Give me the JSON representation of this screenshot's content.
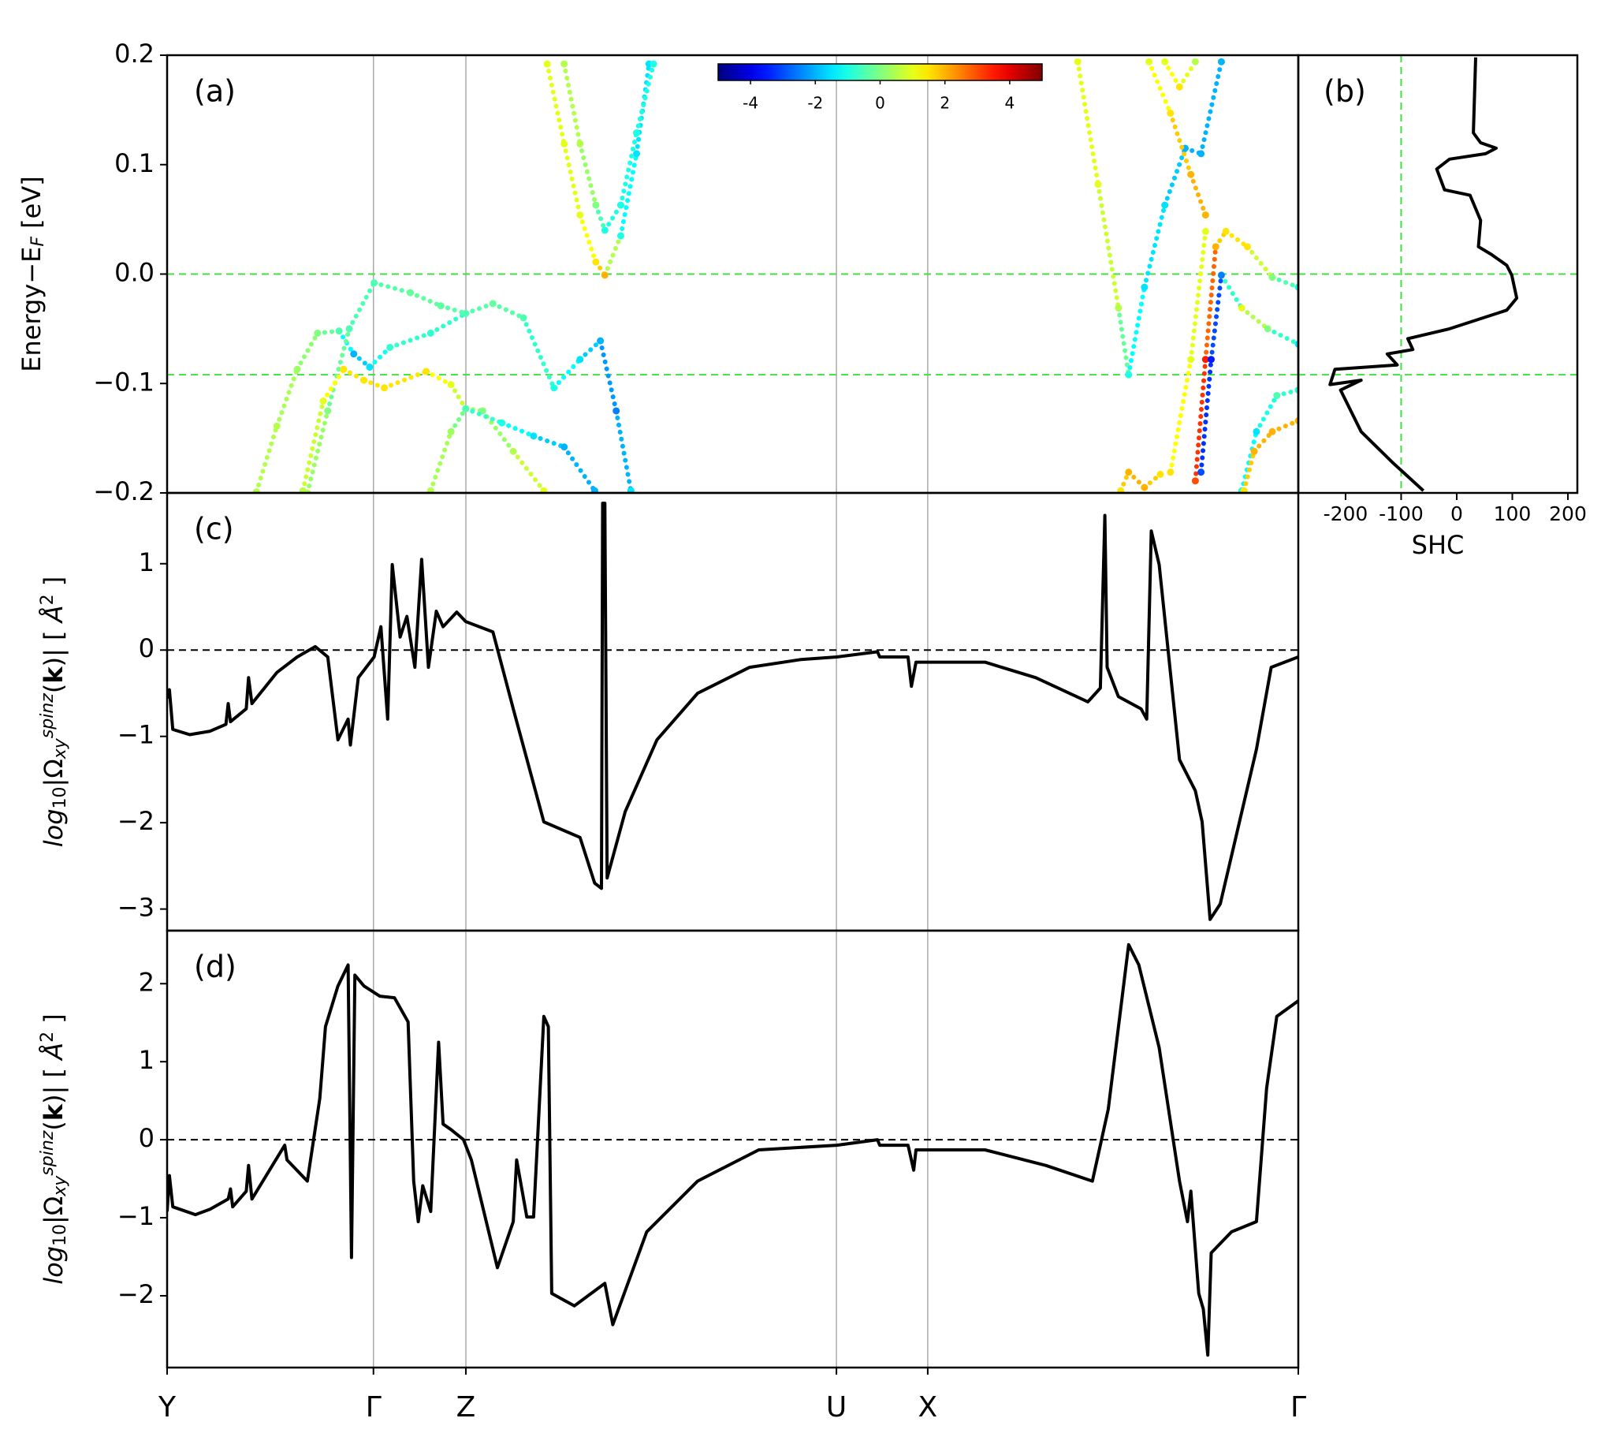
{
  "chart_data": [
    {
      "type": "scatter",
      "label": "(a)",
      "ylabel": [
        {
          "text": "Energy−E"
        },
        {
          "text": "F",
          "style": "sub-italic"
        },
        {
          "text": " [eV]"
        }
      ],
      "xlim": [
        0,
        1
      ],
      "ylim": [
        -0.2,
        0.2
      ],
      "yticks": [
        {
          "value": -0.2,
          "label": "−0.2"
        },
        {
          "value": -0.1,
          "label": "−0.1"
        },
        {
          "value": 0,
          "label": "0.0"
        },
        0.1,
        0.2
      ],
      "hlines": [
        0,
        -0.092
      ],
      "hline_color": "#44dd44",
      "colorbar": {
        "clim": [
          -5,
          5
        ],
        "ticks": [
          -4,
          -2,
          0,
          2,
          4
        ]
      },
      "series": [
        {
          "x": [
            0.079,
            0.097,
            0.115,
            0.133,
            0.152,
            0.165,
            0.179,
            0.197,
            0.233,
            0.264
          ],
          "values": [
            -0.199,
            -0.139,
            -0.087,
            -0.054,
            -0.052,
            -0.073,
            -0.085,
            -0.067,
            -0.054,
            -0.036
          ],
          "c": [
            0.5,
            0.5,
            0.3,
            0,
            -0.5,
            -2,
            -1.5,
            -0.8,
            -0.8,
            -0.8
          ]
        },
        {
          "x": [
            0.124,
            0.142,
            0.161,
            0.183,
            0.215,
            0.242,
            0.264,
            0.288,
            0.315,
            0.342,
            0.365,
            0.383,
            0.397,
            0.41
          ],
          "values": [
            -0.2,
            -0.125,
            -0.05,
            -0.008,
            -0.017,
            -0.029,
            -0.036,
            -0.027,
            -0.04,
            -0.104,
            -0.078,
            -0.061,
            -0.125,
            -0.198
          ],
          "c": [
            0.5,
            0,
            -0.5,
            -0.5,
            -0.3,
            -0.3,
            -0.5,
            -0.3,
            -0.5,
            -1,
            -1.5,
            -2,
            -2.5,
            -1.5
          ]
        },
        {
          "x": [
            0.12,
            0.138,
            0.156,
            0.174,
            0.192,
            0.229,
            0.251,
            0.264,
            0.279,
            0.306,
            0.333
          ],
          "values": [
            -0.198,
            -0.116,
            -0.087,
            -0.097,
            -0.104,
            -0.089,
            -0.101,
            -0.123,
            -0.125,
            -0.162,
            -0.198
          ],
          "c": [
            0.5,
            1,
            1.5,
            1.5,
            1.5,
            1.5,
            1,
            0.5,
            0,
            0.5,
            1
          ]
        },
        {
          "x": [
            0.233,
            0.251,
            0.264,
            0.296,
            0.324,
            0.351,
            0.378
          ],
          "values": [
            -0.198,
            -0.144,
            -0.123,
            -0.136,
            -0.148,
            -0.158,
            -0.198
          ],
          "c": [
            0.5,
            0.3,
            -0.5,
            -1,
            -1.5,
            -2,
            -2
          ]
        },
        {
          "x": [
            0.336,
            0.351,
            0.365,
            0.379,
            0.387,
            0.401,
            0.415,
            0.426
          ],
          "values": [
            0.192,
            0.119,
            0.054,
            0.011,
            -0.001,
            0.035,
            0.11,
            0.192
          ],
          "c": [
            1,
            1,
            1,
            1.5,
            2,
            -1,
            -1.5,
            -1.5
          ]
        },
        {
          "x": [
            0.351,
            0.365,
            0.379,
            0.387,
            0.401,
            0.415,
            0.43
          ],
          "values": [
            0.192,
            0.119,
            0.063,
            0.04,
            0.063,
            0.129,
            0.192
          ],
          "c": [
            0.5,
            0.5,
            0,
            -1,
            -1,
            -1,
            -1
          ]
        },
        {
          "x": [
            0.805,
            0.823,
            0.841,
            0.85,
            0.864,
            0.882,
            0.9,
            0.914,
            0.932
          ],
          "values": [
            0.194,
            0.082,
            -0.031,
            -0.092,
            -0.012,
            0.063,
            0.115,
            0.11,
            0.194
          ],
          "c": [
            1,
            1,
            0.5,
            -1,
            -1.5,
            -1.5,
            -2,
            -2,
            -2
          ]
        },
        {
          "x": [
            0.882,
            0.895,
            0.909
          ],
          "values": [
            0.194,
            0.171,
            0.194
          ],
          "c": [
            1,
            1.5,
            0.5
          ]
        },
        {
          "x": [
            0.868,
            0.887,
            0.905,
            0.918
          ],
          "values": [
            0.194,
            0.147,
            0.091,
            0.054
          ],
          "c": [
            1,
            1.5,
            2,
            2
          ]
        },
        {
          "x": [
            0.909,
            0.918,
            0.927,
            0.936,
            0.955,
            0.977,
            1
          ],
          "values": [
            -0.189,
            -0.078,
            0.025,
            0.039,
            0.025,
            -0.003,
            -0.012
          ],
          "c": [
            3,
            3.5,
            2,
            1.5,
            1.5,
            0,
            -1
          ]
        },
        {
          "x": [
            0.914,
            0.923,
            0.932,
            0.95,
            0.973,
            1
          ],
          "values": [
            -0.181,
            -0.078,
            -0.001,
            -0.031,
            -0.05,
            -0.064
          ],
          "c": [
            -3,
            -3.5,
            -2.5,
            1,
            0,
            -1.5
          ]
        },
        {
          "x": [
            0.887,
            0.905,
            0.918
          ],
          "values": [
            -0.181,
            -0.078,
            0.039
          ],
          "c": [
            1.5,
            1,
            1
          ]
        },
        {
          "x": [
            0.843,
            0.85,
            0.864,
            0.878
          ],
          "values": [
            -0.198,
            -0.181,
            -0.195,
            -0.183
          ],
          "c": [
            1.5,
            2,
            2,
            1.5
          ]
        },
        {
          "x": [
            0.95,
            0.963,
            0.981,
            1
          ],
          "values": [
            -0.198,
            -0.144,
            -0.111,
            -0.106
          ],
          "c": [
            -1,
            -1.5,
            -0.5,
            -1
          ]
        },
        {
          "x": [
            0.952,
            0.961,
            0.977,
            1
          ],
          "values": [
            -0.198,
            -0.162,
            -0.144,
            -0.134
          ],
          "c": [
            1.5,
            2,
            2,
            2
          ]
        }
      ]
    },
    {
      "type": "line",
      "label": "(b)",
      "xlabel": "SHC",
      "xlim": [
        -285,
        217
      ],
      "ylim": [
        -0.2,
        0.2
      ],
      "xticks": [
        -200,
        -100,
        0,
        100,
        200
      ],
      "hlines": [
        0,
        -0.092
      ],
      "vlines": [
        -100
      ],
      "hline_color": "#44dd44",
      "x": [
        34,
        30,
        43,
        71,
        52,
        -13,
        -36,
        -22,
        24,
        43,
        39,
        62,
        90,
        99,
        108,
        90,
        -13,
        -88,
        -79,
        -125,
        -107,
        -219,
        -228,
        -172,
        -209,
        -172,
        -116,
        -60
      ],
      "values": [
        0.198,
        0.129,
        0.12,
        0.115,
        0.11,
        0.105,
        0.096,
        0.077,
        0.072,
        0.049,
        0.025,
        0.018,
        0.008,
        -0.001,
        -0.022,
        -0.033,
        -0.05,
        -0.059,
        -0.069,
        -0.073,
        -0.083,
        -0.087,
        -0.101,
        -0.097,
        -0.106,
        -0.144,
        -0.172,
        -0.198
      ]
    },
    {
      "type": "line",
      "label": "(c)",
      "ylabel": [
        {
          "text": "log",
          "style": "italic"
        },
        {
          "text": "10",
          "style": "sub"
        },
        {
          "text": "|Ω"
        },
        {
          "text": "xy",
          "style": "sub-italic"
        },
        {
          "text": "spinz",
          "style": "sup-italic"
        },
        {
          "text": "("
        },
        {
          "text": "k",
          "style": "bold"
        },
        {
          "text": ")|  [ "
        },
        {
          "text": "Å",
          "style": "italic"
        },
        {
          "text": "2",
          "style": "sup"
        },
        {
          "text": " ]"
        }
      ],
      "xlim": [
        0,
        1
      ],
      "ylim": [
        -3.25,
        1.82
      ],
      "yticks": [
        {
          "value": -3,
          "label": "−3"
        },
        {
          "value": -2,
          "label": "−2"
        },
        {
          "value": -1,
          "label": "−1"
        },
        0,
        1
      ],
      "hlines": [
        0
      ],
      "hline_color": "#000000",
      "x": [
        0,
        0.002,
        0.005,
        0.02,
        0.038,
        0.052,
        0.054,
        0.056,
        0.07,
        0.072,
        0.075,
        0.097,
        0.115,
        0.131,
        0.142,
        0.151,
        0.16,
        0.162,
        0.169,
        0.183,
        0.189,
        0.195,
        0.199,
        0.206,
        0.212,
        0.219,
        0.225,
        0.231,
        0.238,
        0.244,
        0.256,
        0.264,
        0.288,
        0.306,
        0.333,
        0.365,
        0.378,
        0.384,
        0.385,
        0.387,
        0.389,
        0.405,
        0.433,
        0.469,
        0.515,
        0.56,
        0.592,
        0.628,
        0.63,
        0.655,
        0.658,
        0.662,
        0.723,
        0.768,
        0.814,
        0.825,
        0.829,
        0.831,
        0.841,
        0.861,
        0.866,
        0.87,
        0.877,
        0.895,
        0.909,
        0.915,
        0.922,
        0.931,
        0.963,
        0.976,
        1
      ],
      "values": [
        -0.56,
        -0.46,
        -0.92,
        -0.98,
        -0.94,
        -0.86,
        -0.62,
        -0.83,
        -0.68,
        -0.32,
        -0.62,
        -0.26,
        -0.08,
        0.04,
        -0.08,
        -1.04,
        -0.8,
        -1.1,
        -0.32,
        -0.08,
        0.27,
        -0.8,
        0.99,
        0.15,
        0.39,
        -0.2,
        1.05,
        -0.2,
        0.45,
        0.27,
        0.44,
        0.33,
        0.21,
        -0.68,
        -1.99,
        -2.17,
        -2.7,
        -2.76,
        1.7,
        1.7,
        -2.64,
        -1.87,
        -1.04,
        -0.5,
        -0.2,
        -0.11,
        -0.08,
        -0.02,
        -0.08,
        -0.08,
        -0.42,
        -0.14,
        -0.14,
        -0.32,
        -0.6,
        -0.44,
        1.56,
        -0.2,
        -0.54,
        -0.68,
        -0.8,
        1.38,
        0.99,
        -1.27,
        -1.63,
        -1.99,
        -3.12,
        -2.94,
        -1.15,
        -0.2,
        -0.08
      ]
    },
    {
      "type": "line",
      "label": "(d)",
      "ylabel": [
        {
          "text": "log",
          "style": "italic"
        },
        {
          "text": "10",
          "style": "sub"
        },
        {
          "text": "|Ω"
        },
        {
          "text": "xy",
          "style": "sub-italic"
        },
        {
          "text": "spinz",
          "style": "sup-italic"
        },
        {
          "text": "("
        },
        {
          "text": "k",
          "style": "bold"
        },
        {
          "text": ")|  [ "
        },
        {
          "text": "Å",
          "style": "italic"
        },
        {
          "text": "2",
          "style": "sup"
        },
        {
          "text": " ]"
        }
      ],
      "xlim": [
        0,
        1
      ],
      "ylim": [
        -2.92,
        2.68
      ],
      "xticks": [
        {
          "value": 0,
          "label": "Y"
        },
        {
          "value": 0.1824,
          "label": "Γ"
        },
        {
          "value": 0.2641,
          "label": "Z"
        },
        {
          "value": 0.5917,
          "label": "U"
        },
        {
          "value": 0.6724,
          "label": "X"
        },
        {
          "value": 1,
          "label": "Γ"
        }
      ],
      "yticks": [
        {
          "value": -2,
          "label": "−2"
        },
        {
          "value": -1,
          "label": "−1"
        },
        0,
        1,
        2
      ],
      "hlines": [
        0
      ],
      "hline_color": "#000000",
      "x": [
        0,
        0.002,
        0.005,
        0.025,
        0.038,
        0.054,
        0.056,
        0.058,
        0.07,
        0.072,
        0.075,
        0.104,
        0.106,
        0.124,
        0.135,
        0.14,
        0.151,
        0.16,
        0.163,
        0.166,
        0.174,
        0.188,
        0.201,
        0.213,
        0.218,
        0.222,
        0.226,
        0.233,
        0.24,
        0.244,
        0.251,
        0.262,
        0.269,
        0.292,
        0.306,
        0.309,
        0.318,
        0.324,
        0.333,
        0.337,
        0.34,
        0.36,
        0.387,
        0.394,
        0.424,
        0.469,
        0.523,
        0.592,
        0.628,
        0.63,
        0.655,
        0.66,
        0.662,
        0.723,
        0.777,
        0.818,
        0.832,
        0.85,
        0.859,
        0.877,
        0.895,
        0.902,
        0.905,
        0.912,
        0.916,
        0.92,
        0.923,
        0.941,
        0.963,
        0.972,
        0.981,
        1
      ],
      "values": [
        -0.92,
        -0.46,
        -0.86,
        -0.96,
        -0.89,
        -0.76,
        -0.63,
        -0.86,
        -0.66,
        -0.33,
        -0.76,
        -0.07,
        -0.26,
        -0.53,
        0.53,
        1.45,
        1.97,
        2.24,
        -1.51,
        2.11,
        1.97,
        1.84,
        1.82,
        1.51,
        -0.53,
        -1.05,
        -0.59,
        -0.92,
        1.25,
        0.2,
        0.13,
        0,
        -0.26,
        -1.64,
        -1.05,
        -0.26,
        -0.99,
        -0.99,
        1.58,
        1.45,
        -1.97,
        -2.13,
        -1.84,
        -2.37,
        -1.18,
        -0.53,
        -0.13,
        -0.07,
        0,
        -0.07,
        -0.07,
        -0.39,
        -0.13,
        -0.13,
        -0.33,
        -0.53,
        0.39,
        2.5,
        2.24,
        1.18,
        -0.53,
        -1.05,
        -0.66,
        -1.97,
        -2.17,
        -2.76,
        -1.45,
        -1.18,
        -1.05,
        0.66,
        1.58,
        1.78
      ]
    }
  ]
}
